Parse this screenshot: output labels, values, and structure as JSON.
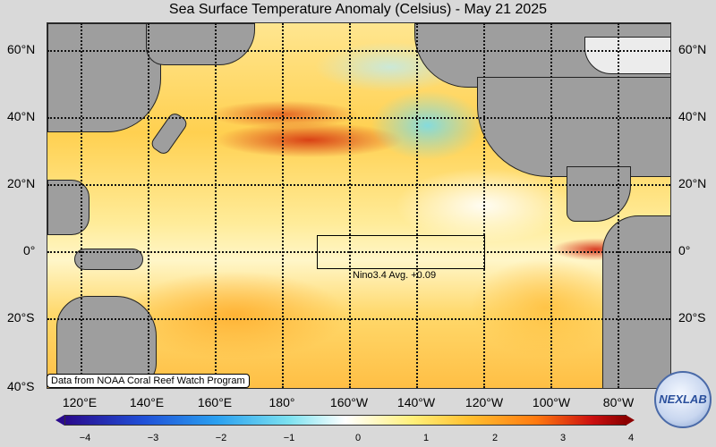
{
  "title": "Sea Surface Temperature Anomaly (Celsius) - May 21 2025",
  "lat_labels": [
    "60°N",
    "40°N",
    "20°N",
    "0°",
    "20°S",
    "40°S"
  ],
  "lon_labels": [
    "120°E",
    "140°E",
    "160°E",
    "180°",
    "160°W",
    "140°W",
    "120°W",
    "100°W",
    "80°W"
  ],
  "nino_label": "Nino3.4 Avg. +0.09",
  "credit": "Data from NOAA Coral Reef Watch Program",
  "colorbar": {
    "ticks": [
      "−4",
      "−3",
      "−2",
      "−1",
      "0",
      "1",
      "2",
      "3",
      "4"
    ],
    "min": -4,
    "max": 4
  },
  "logo": {
    "text": "NEXLAB"
  },
  "colors": {
    "land": "#9e9e9e",
    "background": "#d9d9d9"
  }
}
